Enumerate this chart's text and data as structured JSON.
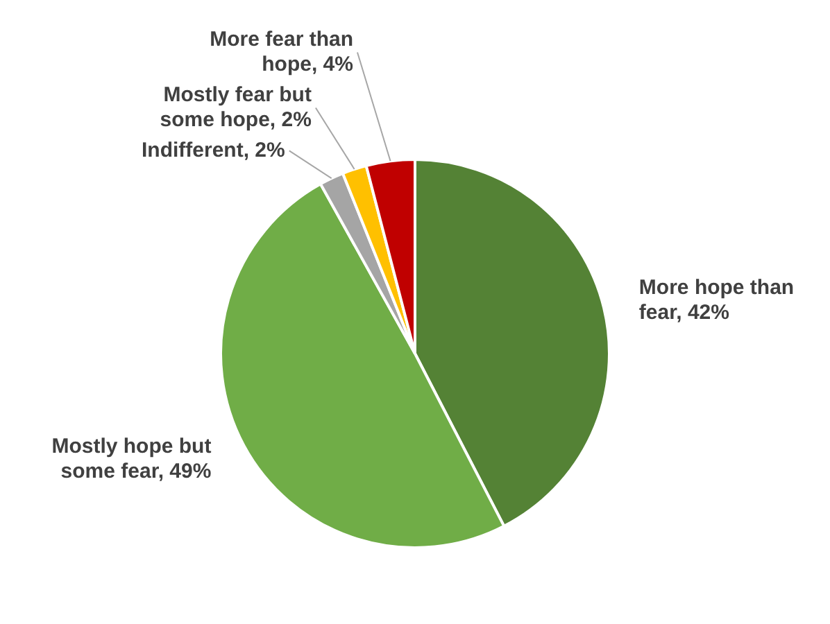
{
  "chart_data": {
    "type": "pie",
    "categories": [
      "More hope than fear",
      "Mostly hope but some fear",
      "Indifferent",
      "Mostly fear but some hope",
      "More fear than hope"
    ],
    "values": [
      42,
      49,
      2,
      2,
      4
    ],
    "colors": [
      "#548235",
      "#70ad47",
      "#a5a5a5",
      "#ffc000",
      "#c00000"
    ],
    "value_labels": [
      "42%",
      "49%",
      "2%",
      "2%",
      "4%"
    ],
    "legend": false
  }
}
